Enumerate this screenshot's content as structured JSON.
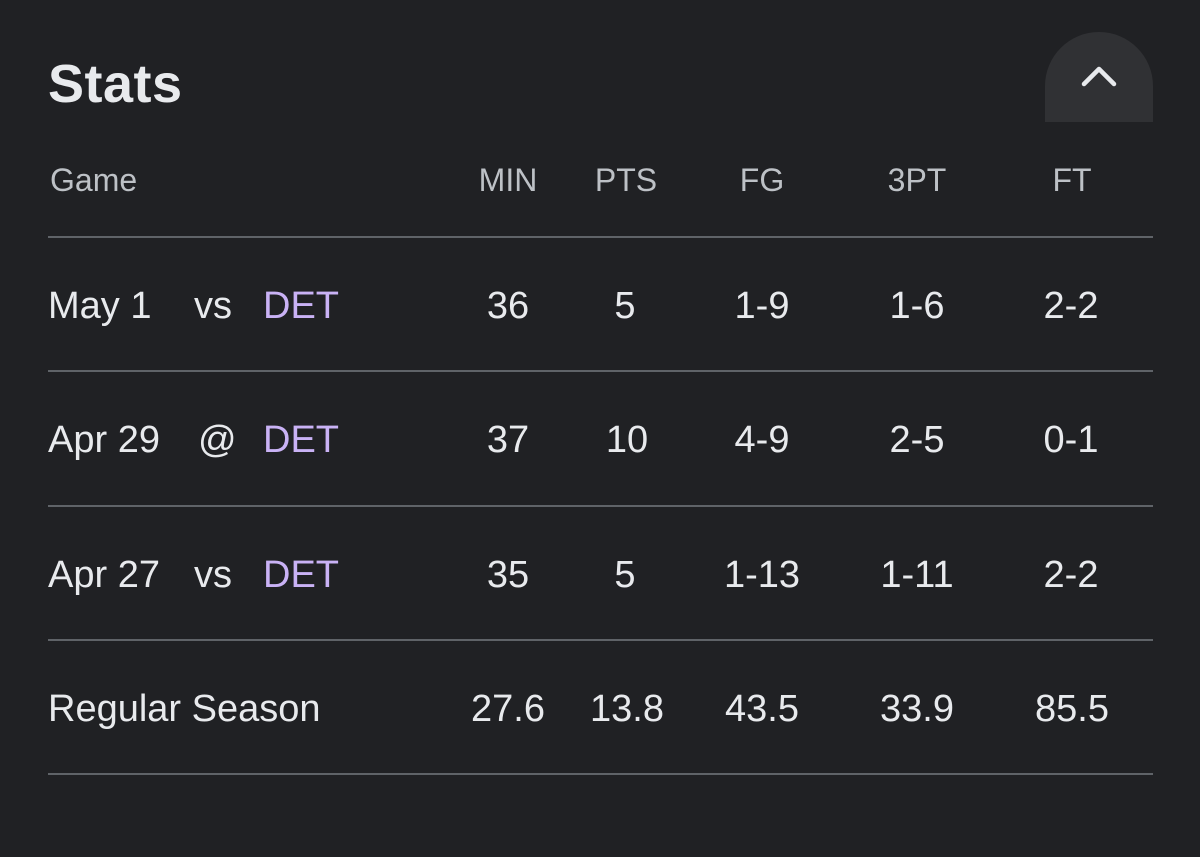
{
  "title": "Stats",
  "collapse_icon": "chevron-up-icon",
  "colors": {
    "background": "#202124",
    "text": "#e8eaed",
    "header_text": "#bdc1c6",
    "opponent_link": "#c9b2f5",
    "divider": "#5f6368",
    "button_bg": "#303134"
  },
  "columns": {
    "game": "Game",
    "min": "MIN",
    "pts": "PTS",
    "fg": "FG",
    "tpt": "3PT",
    "ft": "FT"
  },
  "rows": [
    {
      "date": "May 1",
      "loc": "vs",
      "opp": "DET",
      "min": "36",
      "pts": "5",
      "fg": "1-9",
      "tpt": "1-6",
      "ft": "2-2"
    },
    {
      "date": "Apr 29",
      "loc": "@",
      "opp": "DET",
      "min": "37",
      "pts": "10",
      "fg": "4-9",
      "tpt": "2-5",
      "ft": "0-1"
    },
    {
      "date": "Apr 27",
      "loc": "vs",
      "opp": "DET",
      "min": "35",
      "pts": "5",
      "fg": "1-13",
      "tpt": "1-11",
      "ft": "2-2"
    }
  ],
  "season": {
    "label": "Regular Season",
    "min": "27.6",
    "pts": "13.8",
    "fg": "43.5",
    "tpt": "33.9",
    "ft": "85.5"
  }
}
